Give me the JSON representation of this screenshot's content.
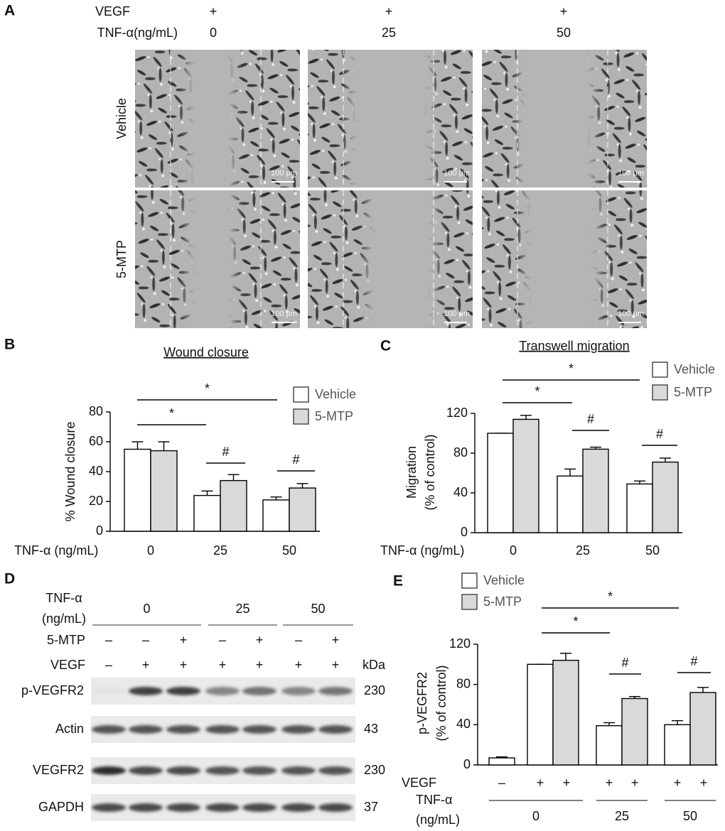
{
  "panel_labels": [
    "A",
    "B",
    "C",
    "D",
    "E"
  ],
  "panel_a": {
    "header_rows": [
      {
        "label": "VEGF",
        "values": [
          "+",
          "+",
          "+"
        ]
      },
      {
        "label": "TNF-α(ng/mL)",
        "values": [
          "0",
          "25",
          "50"
        ]
      }
    ],
    "row_labels": [
      "Vehicle",
      "5-MTP"
    ],
    "scale_bar": "100 μm"
  },
  "chart_data": [
    {
      "type": "bar",
      "title": "Wound closure",
      "ylabel": [
        "% Wound closure"
      ],
      "xlabel": [
        "TNF-α (ng/mL)"
      ],
      "categories": [
        "0",
        "25",
        "50"
      ],
      "series": [
        {
          "name": "Vehicle",
          "color": "#ffffff",
          "values": [
            55,
            24,
            21
          ],
          "errors": [
            5,
            3,
            2
          ]
        },
        {
          "name": "5-MTP",
          "color": "#d9d9d9",
          "values": [
            54,
            34,
            29
          ],
          "errors": [
            6,
            4,
            3
          ]
        }
      ],
      "ylim": [
        0,
        80
      ],
      "yticks": [
        0,
        20,
        40,
        60,
        80
      ],
      "annotations": [
        "*",
        "*",
        "#",
        "#"
      ]
    },
    {
      "type": "bar",
      "title": "Transwell migration",
      "ylabel": [
        "Migration",
        "(% of control)"
      ],
      "xlabel": [
        "TNF-α (ng/mL)"
      ],
      "categories": [
        "0",
        "25",
        "50"
      ],
      "series": [
        {
          "name": "Vehicle",
          "color": "#ffffff",
          "values": [
            100,
            57,
            49
          ],
          "errors": [
            0,
            7,
            3
          ]
        },
        {
          "name": "5-MTP",
          "color": "#d9d9d9",
          "values": [
            114,
            84,
            71
          ],
          "errors": [
            4,
            2,
            4
          ]
        }
      ],
      "ylim": [
        0,
        120
      ],
      "yticks": [
        0,
        40,
        80,
        120
      ],
      "annotations": [
        "*",
        "*",
        "#",
        "#"
      ]
    },
    {
      "type": "bar",
      "ylabel": [
        "p-VEGFR2",
        "(% of control)"
      ],
      "xlabel": [
        "TNF-α",
        "(ng/mL)"
      ],
      "categories": [
        null,
        "0",
        "25",
        "50"
      ],
      "vegf_row": {
        "label": "VEGF",
        "values": [
          "–",
          "+",
          "+",
          "+",
          "+",
          "+",
          "+"
        ]
      },
      "series": [
        {
          "name": "Vehicle",
          "color": "#ffffff",
          "values": [
            7,
            100,
            39,
            40
          ],
          "errors": [
            1,
            0,
            3,
            4
          ]
        },
        {
          "name": "5-MTP",
          "color": "#d9d9d9",
          "values": [
            null,
            104,
            66,
            72
          ],
          "errors": [
            null,
            7,
            2,
            5
          ]
        }
      ],
      "ylim": [
        0,
        120
      ],
      "yticks": [
        0,
        40,
        80,
        120
      ],
      "annotations": [
        "*",
        "*",
        "#",
        "#"
      ]
    }
  ],
  "panel_d": {
    "tnf_label": [
      "TNF-α",
      "(ng/mL)"
    ],
    "tnf_groups": [
      "0",
      "25",
      "50"
    ],
    "rows": [
      {
        "label": "5-MTP",
        "values": [
          "–",
          "–",
          "+",
          "–",
          "+",
          "–",
          "+"
        ]
      },
      {
        "label": "VEGF",
        "values": [
          "–",
          "+",
          "+",
          "+",
          "+",
          "+",
          "+"
        ]
      }
    ],
    "unit": "kDa",
    "blots": [
      {
        "label": "p-VEGFR2",
        "kda": 230
      },
      {
        "label": "Actin",
        "kda": 43
      },
      {
        "label": "VEGFR2",
        "kda": 230
      },
      {
        "label": "GAPDH",
        "kda": 37
      }
    ]
  }
}
